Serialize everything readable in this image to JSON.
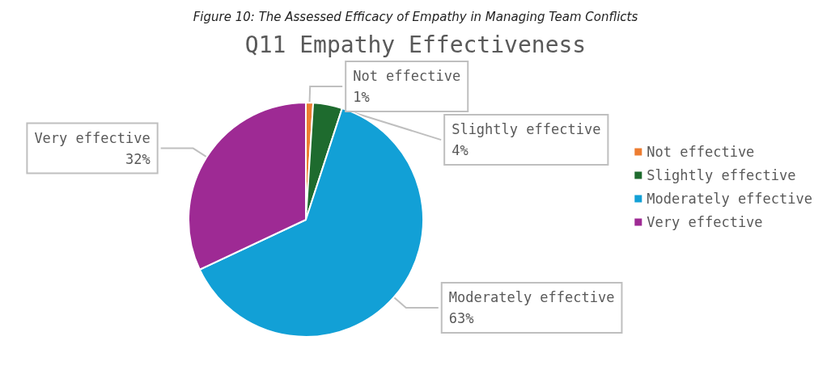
{
  "chart_data": {
    "type": "pie",
    "title": "Q11 Empathy Effectiveness",
    "annotations": [
      "Figure 10: The Assessed Efficacy of Empathy in Managing Team Conflicts"
    ],
    "categories": [
      "Not effective",
      "Slightly effective",
      "Moderately effective",
      "Very effective"
    ],
    "values": [
      1,
      4,
      63,
      32
    ],
    "value_labels": [
      "1%",
      "4%",
      "63%",
      "32%"
    ],
    "colors": [
      "#ed7d31",
      "#1e6b2e",
      "#12a0d6",
      "#9e2a94"
    ],
    "legend": "right"
  }
}
